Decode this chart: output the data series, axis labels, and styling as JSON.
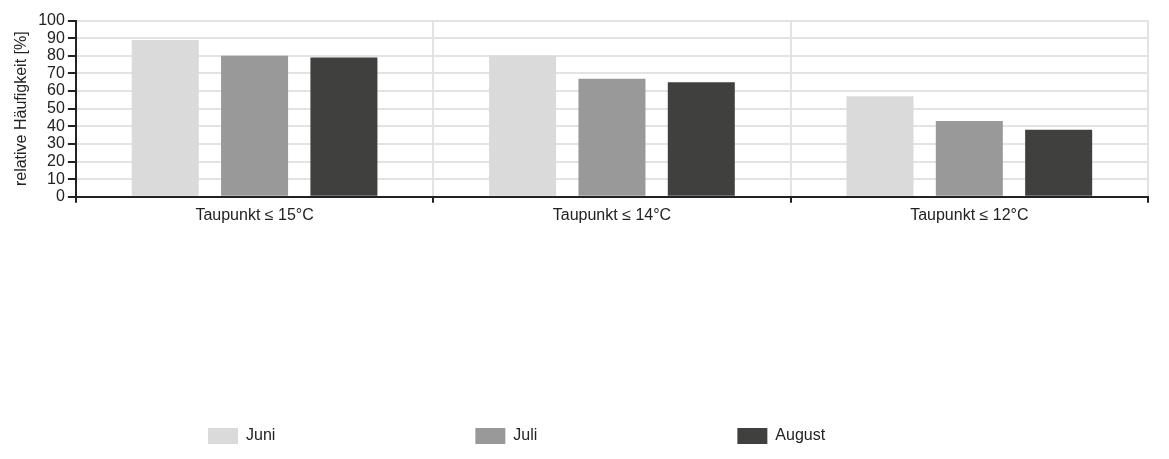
{
  "chart_data": {
    "type": "bar",
    "ylabel": "relative Häufigkeit [%]",
    "categories": [
      "Taupunkt ≤ 15°C",
      "Taupunkt ≤ 14°C",
      "Taupunkt ≤ 12°C"
    ],
    "series": [
      {
        "name": "Juni",
        "color": "#dadada",
        "values": [
          89,
          80,
          57
        ]
      },
      {
        "name": "Juli",
        "color": "#999999",
        "values": [
          80,
          67,
          43
        ]
      },
      {
        "name": "August",
        "color": "#40403e",
        "values": [
          79,
          65,
          38
        ]
      }
    ],
    "ylim": [
      0,
      100
    ],
    "yticks": [
      0,
      10,
      20,
      30,
      40,
      50,
      60,
      70,
      80,
      90,
      100
    ],
    "grid": true,
    "legend": "bottom"
  }
}
